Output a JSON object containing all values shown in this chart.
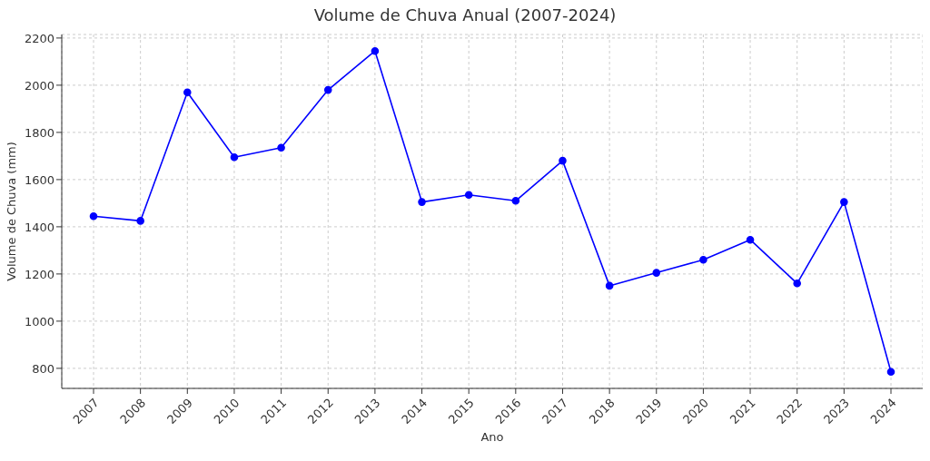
{
  "chart_data": {
    "type": "line",
    "title": "Volume de Chuva Anual (2007-2024)",
    "xlabel": "Ano",
    "ylabel": "Volume de Chuva (mm)",
    "categories": [
      "2007",
      "2008",
      "2009",
      "2010",
      "2011",
      "2012",
      "2013",
      "2014",
      "2015",
      "2016",
      "2017",
      "2018",
      "2019",
      "2020",
      "2021",
      "2022",
      "2023",
      "2024"
    ],
    "series": [
      {
        "color": "#0000ff",
        "values": [
          1445,
          1425,
          1970,
          1695,
          1735,
          1980,
          2145,
          1505,
          1535,
          1510,
          1680,
          1150,
          1205,
          1260,
          1345,
          1160,
          1505,
          785
        ]
      }
    ],
    "ylim": [
      715,
      2215
    ],
    "yticks": [
      800,
      1000,
      1200,
      1400,
      1600,
      1800,
      2000,
      2200
    ],
    "grid": true,
    "marker": "circle",
    "line_style": "solid"
  }
}
